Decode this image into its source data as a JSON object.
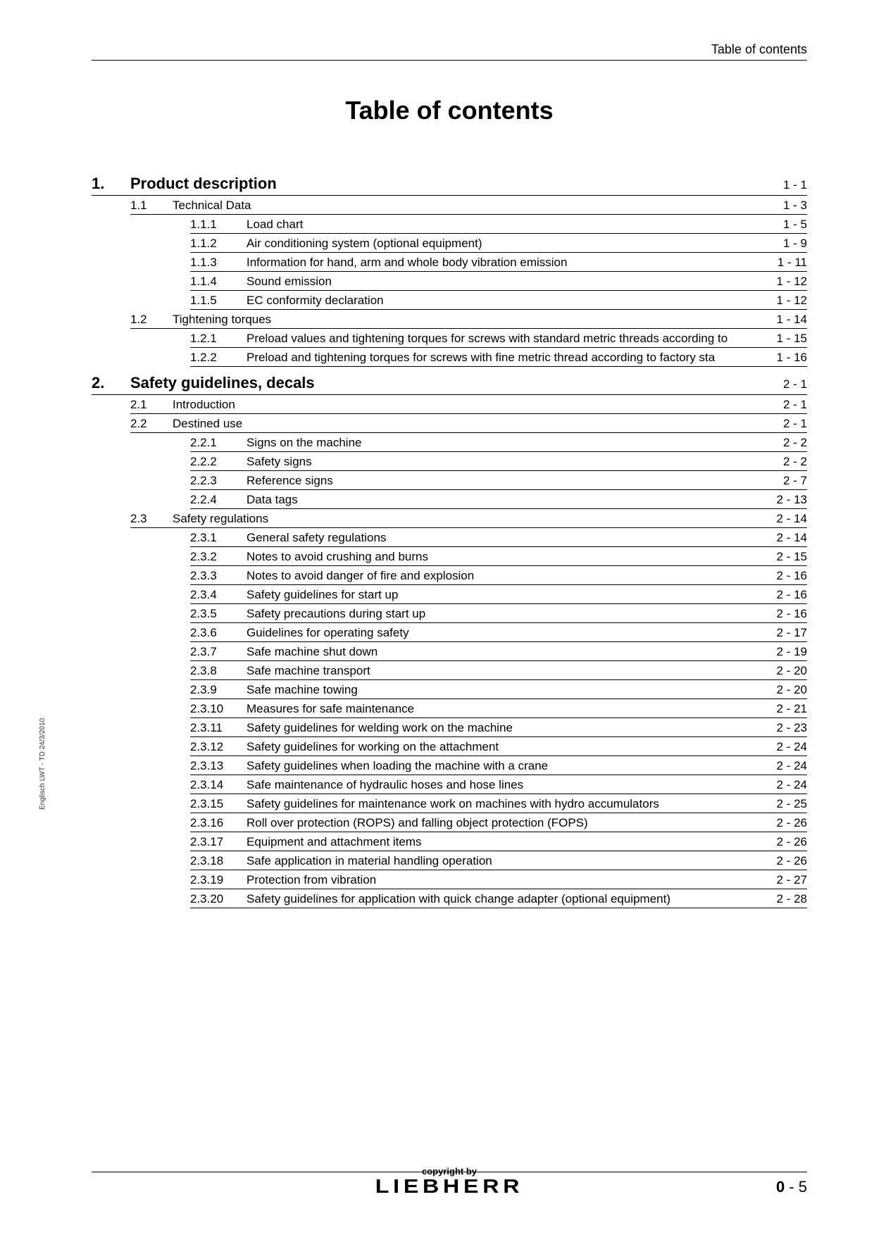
{
  "header": {
    "right_text": "Table of contents"
  },
  "title": "Table of contents",
  "side_text": "Englisch  LWT - TD 24/3/2010",
  "footer": {
    "copyright": "copyright by",
    "brand": "LIEBHERR",
    "page_chapter": "0",
    "page_sep": " - ",
    "page_num": "5"
  },
  "chapters": [
    {
      "num": "1.",
      "title": "Product description",
      "page": "1 - 1",
      "sections": [
        {
          "num": "1.1",
          "title": "Technical Data",
          "page": "1 - 3",
          "subs": [
            {
              "num": "1.1.1",
              "title": "Load chart",
              "page": "1 - 5"
            },
            {
              "num": "1.1.2",
              "title": "Air conditioning system (optional equipment)",
              "page": "1 - 9"
            },
            {
              "num": "1.1.3",
              "title": "Information for hand, arm and whole body vibration emission",
              "page": "1 - 11"
            },
            {
              "num": "1.1.4",
              "title": "Sound emission",
              "page": "1 - 12"
            },
            {
              "num": "1.1.5",
              "title": "EC conformity declaration",
              "page": "1 - 12"
            }
          ]
        },
        {
          "num": "1.2",
          "title": "Tightening torques",
          "page": "1 - 14",
          "subs": [
            {
              "num": "1.2.1",
              "title": "Preload values and tightening torques for screws with standard metric threads according to",
              "page": "1 - 15"
            },
            {
              "num": "1.2.2",
              "title": "Preload and tightening torques for screws with fine metric thread according to factory sta",
              "page": "1 - 16"
            }
          ]
        }
      ]
    },
    {
      "num": "2.",
      "title": "Safety guidelines, decals",
      "page": "2 - 1",
      "sections": [
        {
          "num": "2.1",
          "title": "Introduction",
          "page": "2 - 1",
          "subs": []
        },
        {
          "num": "2.2",
          "title": "Destined use",
          "page": "2 - 1",
          "subs": [
            {
              "num": "2.2.1",
              "title": "Signs on the machine",
              "page": "2 - 2"
            },
            {
              "num": "2.2.2",
              "title": "Safety signs",
              "page": "2 - 2"
            },
            {
              "num": "2.2.3",
              "title": "Reference signs",
              "page": "2 - 7"
            },
            {
              "num": "2.2.4",
              "title": "Data tags",
              "page": "2 - 13"
            }
          ]
        },
        {
          "num": "2.3",
          "title": "Safety regulations",
          "page": "2 - 14",
          "subs": [
            {
              "num": "2.3.1",
              "title": "General safety regulations",
              "page": "2 - 14"
            },
            {
              "num": "2.3.2",
              "title": "Notes to avoid crushing and burns",
              "page": "2 - 15"
            },
            {
              "num": "2.3.3",
              "title": "Notes to avoid danger of fire and explosion",
              "page": "2 - 16"
            },
            {
              "num": "2.3.4",
              "title": "Safety guidelines for start up",
              "page": "2 - 16"
            },
            {
              "num": "2.3.5",
              "title": "Safety precautions during start up",
              "page": "2 - 16"
            },
            {
              "num": "2.3.6",
              "title": "Guidelines for operating safety",
              "page": "2 - 17"
            },
            {
              "num": "2.3.7",
              "title": "Safe machine shut down",
              "page": "2 - 19"
            },
            {
              "num": "2.3.8",
              "title": "Safe machine transport",
              "page": "2 - 20"
            },
            {
              "num": "2.3.9",
              "title": "Safe machine towing",
              "page": "2 - 20"
            },
            {
              "num": "2.3.10",
              "title": "Measures for safe maintenance",
              "page": "2 - 21"
            },
            {
              "num": "2.3.11",
              "title": "Safety guidelines for welding work on the machine",
              "page": "2 - 23"
            },
            {
              "num": "2.3.12",
              "title": "Safety guidelines for working on the attachment",
              "page": "2 - 24"
            },
            {
              "num": "2.3.13",
              "title": "Safety guidelines when loading the machine with a crane",
              "page": "2 - 24"
            },
            {
              "num": "2.3.14",
              "title": "Safe maintenance of hydraulic hoses and hose lines",
              "page": "2 - 24"
            },
            {
              "num": "2.3.15",
              "title": "Safety guidelines for maintenance work on machines with hydro accumulators",
              "page": "2 - 25"
            },
            {
              "num": "2.3.16",
              "title": "Roll over protection (ROPS) and falling object protection (FOPS)",
              "page": "2 - 26"
            },
            {
              "num": "2.3.17",
              "title": "Equipment and attachment items",
              "page": "2 - 26"
            },
            {
              "num": "2.3.18",
              "title": "Safe application in material handling operation",
              "page": "2 - 26"
            },
            {
              "num": "2.3.19",
              "title": "Protection from vibration",
              "page": "2 - 27"
            },
            {
              "num": "2.3.20",
              "title": "Safety guidelines for application with quick change adapter (optional equipment)",
              "page": "2 - 28"
            }
          ]
        }
      ]
    }
  ]
}
